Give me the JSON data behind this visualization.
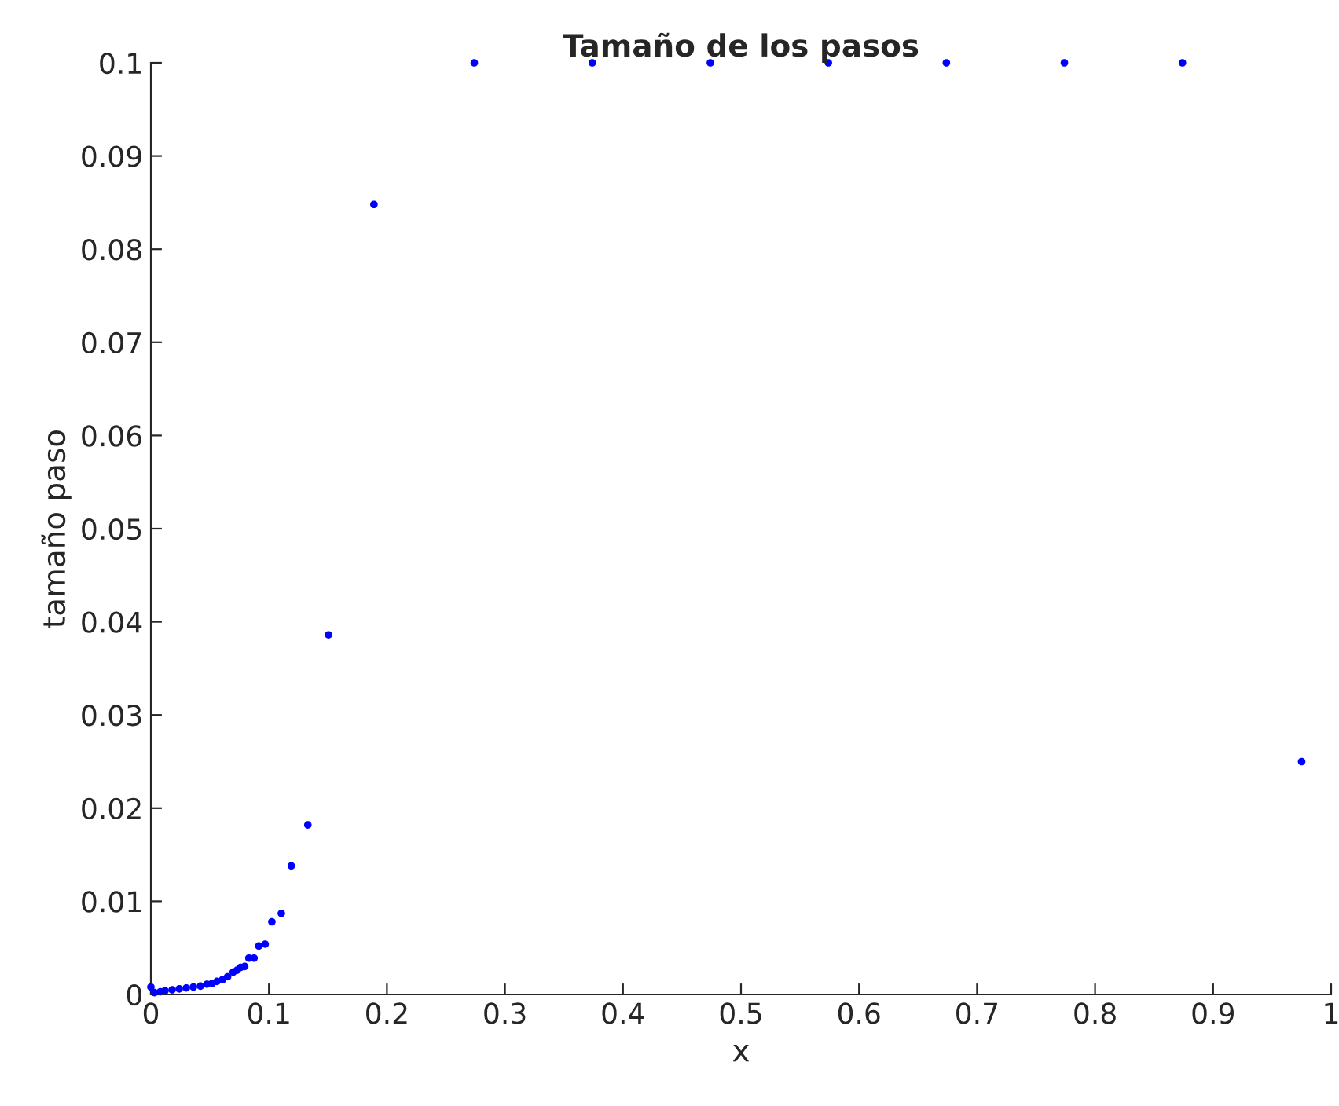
{
  "chart_data": {
    "type": "scatter",
    "title": "Tamaño de los pasos",
    "xlabel": "x",
    "ylabel": "tamaño paso",
    "xlim": [
      0,
      1
    ],
    "ylim": [
      0,
      0.1
    ],
    "xticks": [
      0,
      0.1,
      0.2,
      0.3,
      0.4,
      0.5,
      0.6,
      0.7,
      0.8,
      0.9,
      1
    ],
    "yticks": [
      0,
      0.01,
      0.02,
      0.03,
      0.04,
      0.05,
      0.06,
      0.07,
      0.08,
      0.09,
      0.1
    ],
    "grid": false,
    "legend": false,
    "marker": "circle",
    "series": [
      {
        "color": "#0000ff",
        "x": [
          0,
          0.003,
          0.008,
          0.012,
          0.018,
          0.024,
          0.03,
          0.036,
          0.042,
          0.0475,
          0.052,
          0.056,
          0.0608,
          0.065,
          0.0697,
          0.073,
          0.076,
          0.0795,
          0.083,
          0.0874,
          0.0914,
          0.0968,
          0.1025,
          0.1105,
          0.119,
          0.133,
          0.1505,
          0.189,
          0.274,
          0.374,
          0.474,
          0.574,
          0.674,
          0.774,
          0.874,
          0.975
        ],
        "values": [
          0.0008,
          0.0002,
          0.0003,
          0.0004,
          0.0005,
          0.0006,
          0.0007,
          0.0008,
          0.0009,
          0.0011,
          0.0012,
          0.0014,
          0.0016,
          0.0019,
          0.0024,
          0.0026,
          0.0029,
          0.003,
          0.0039,
          0.0039,
          0.0052,
          0.0054,
          0.0078,
          0.0087,
          0.0138,
          0.0182,
          0.0386,
          0.0848,
          0.1,
          0.1,
          0.1,
          0.1,
          0.1,
          0.1,
          0.1,
          0.025
        ]
      }
    ]
  }
}
